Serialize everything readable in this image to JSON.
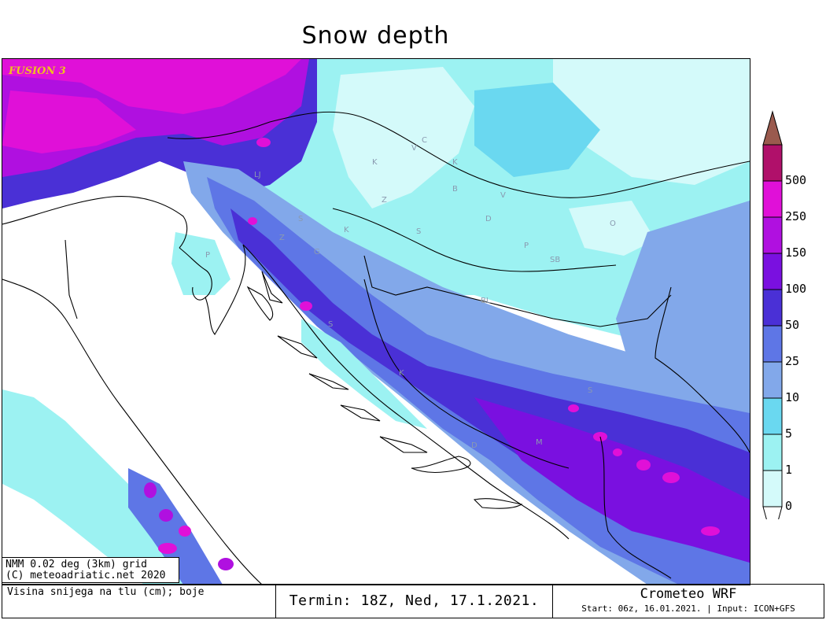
{
  "title": "Snow depth",
  "model_tag": "FUSION 3",
  "grid_info": {
    "line1": "NMM 0.02 deg (3km) grid",
    "line2": "(C) meteoadriatic.net 2020"
  },
  "footer": {
    "variable": "Visina snijega na tlu (cm); boje",
    "termin": "Termin: 18Z, Ned, 17.1.2021.",
    "brand": "Crometeo WRF",
    "start": "Start: 06z, 16.01.2021. | Input: ICON+GFS"
  },
  "legend": {
    "levels": [
      "0",
      "1",
      "5",
      "10",
      "25",
      "50",
      "100",
      "150",
      "250",
      "500"
    ],
    "colors": [
      "#d4fafa",
      "#9cf2f2",
      "#6ad8f0",
      "#82a8ea",
      "#5e76e6",
      "#4a30d6",
      "#7a10e0",
      "#b010e0",
      "#e010d8",
      "#b0106a",
      "#9a5a4e"
    ]
  },
  "place_labels": [
    "C",
    "V",
    "K",
    "K",
    "B",
    "Z",
    "LJ",
    "K",
    "S",
    "D",
    "V",
    "O",
    "P",
    "G",
    "P",
    "SB",
    "BL",
    "Z",
    "K",
    "S",
    "S",
    "M",
    "S",
    "D"
  ],
  "colors": {
    "very_light": "#d4fafa",
    "light_cyan": "#9cf2f2",
    "cyan": "#6ad8f0",
    "steel": "#82a8ea",
    "blue": "#5e76e6",
    "indigo": "#4a30d6",
    "violet": "#7a10e0",
    "purple": "#b010e0",
    "magenta": "#e010d8"
  }
}
